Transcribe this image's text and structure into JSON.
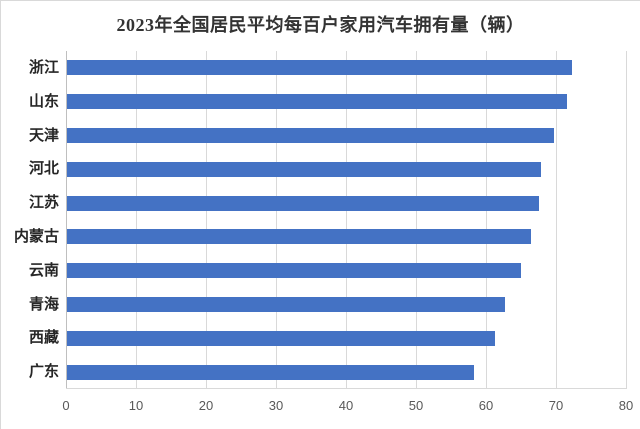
{
  "chart": {
    "title": "2023年全国居民平均每百户家用汽车拥有量（辆）"
  },
  "chart_data": {
    "type": "bar",
    "orientation": "horizontal",
    "title": "2023年全国居民平均每百户家用汽车拥有量（辆）",
    "categories": [
      "浙江",
      "山东",
      "天津",
      "河北",
      "江苏",
      "内蒙古",
      "云南",
      "青海",
      "西藏",
      "广东"
    ],
    "values": [
      72.2,
      71.4,
      69.5,
      67.7,
      67.4,
      66.3,
      64.8,
      62.5,
      61.2,
      58.1
    ],
    "x_ticks": [
      0,
      10,
      20,
      30,
      40,
      50,
      60,
      70,
      80
    ],
    "xlim": [
      0,
      80
    ],
    "xlabel": "",
    "ylabel": "",
    "grid": true,
    "legend": false,
    "bar_color": "#4472C4",
    "gridline_color": "#D9D9D9",
    "axis_color": "#BFBFBF",
    "tick_label_color": "#595959",
    "category_label_color": "#262626",
    "title_color": "#333333",
    "background_color": "#FFFFFF"
  }
}
